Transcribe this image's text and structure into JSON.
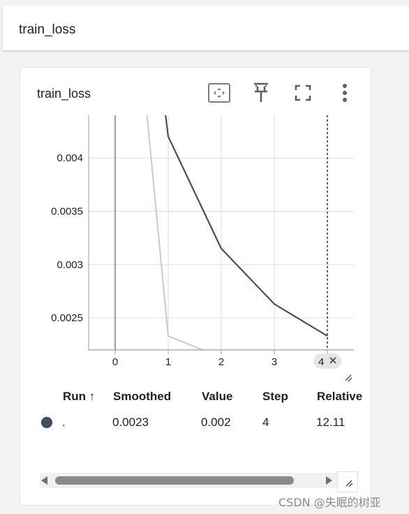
{
  "header": {
    "title": "train_loss"
  },
  "card": {
    "title": "train_loss",
    "icons": [
      "fit-domain-icon",
      "pin-icon",
      "fullscreen-icon",
      "more-vert-icon"
    ]
  },
  "chart_data": {
    "type": "line",
    "title": "",
    "xlabel": "",
    "ylabel": "",
    "x_ticks": [
      "0",
      "1",
      "2",
      "3",
      "4"
    ],
    "y_ticks": [
      "0.004",
      "0.0035",
      "0.003",
      "0.0025"
    ],
    "xlim": [
      -0.5,
      4.5
    ],
    "ylim": [
      0.0022,
      0.0044
    ],
    "grid": true,
    "hover_step_label": "4",
    "series": [
      {
        "role": "smoothed",
        "color": "#425066",
        "x": [
          0.95,
          1,
          2,
          3,
          4
        ],
        "y": [
          0.0044,
          0.0042,
          0.00315,
          0.00263,
          0.00233
        ]
      },
      {
        "role": "raw",
        "color": "#c5cad3",
        "x": [
          0.6,
          1,
          1.65
        ],
        "y": [
          0.0044,
          0.00233,
          0.0022
        ]
      }
    ]
  },
  "legend": {
    "headers": {
      "run": "Run ↑",
      "smoothed": "Smoothed",
      "value": "Value",
      "step": "Step",
      "relative": "Relative"
    },
    "rows": [
      {
        "run": ".",
        "smoothed": "0.0023",
        "value": "0.002",
        "step": "4",
        "relative": "12.11",
        "color": "#425066"
      }
    ]
  },
  "watermark": "CSDN @失眠的树亚"
}
